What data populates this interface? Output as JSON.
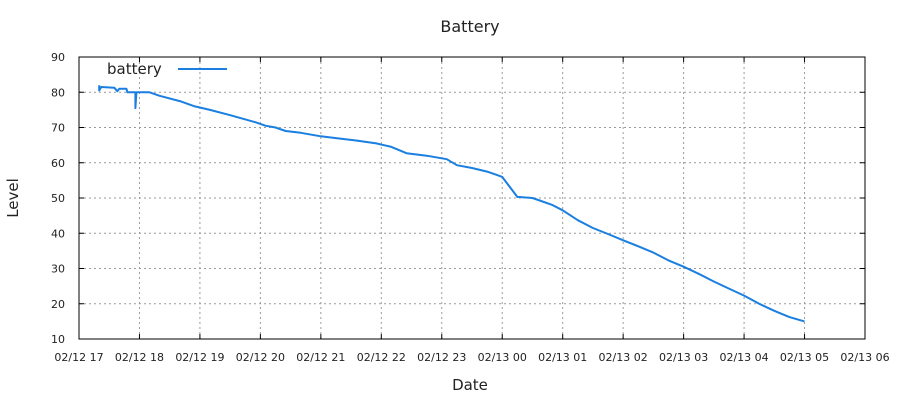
{
  "colors": {
    "series": "#1a7fe0",
    "grid": "#9a9a9a",
    "axis": "#000000"
  },
  "chart_data": {
    "type": "line",
    "title": "Battery",
    "xlabel": "Date",
    "ylabel": "Level",
    "ylim": [
      10,
      90
    ],
    "xlim": [
      "02/12 17",
      "02/13 06"
    ],
    "grid": true,
    "legend_position": "top-left",
    "y_ticks": [
      "10",
      "20",
      "30",
      "40",
      "50",
      "60",
      "70",
      "80",
      "90"
    ],
    "x_ticks": [
      "02/12 17",
      "02/12 18",
      "02/12 19",
      "02/12 20",
      "02/12 21",
      "02/12 22",
      "02/12 23",
      "02/13 00",
      "02/13 01",
      "02/13 02",
      "02/13 03",
      "02/13 04",
      "02/13 05",
      "02/13 06"
    ],
    "series": [
      {
        "name": "battery",
        "color": "#1a7fe0",
        "points": [
          [
            "02/12 17:20",
            82
          ],
          [
            "02/12 17:20",
            80.5
          ],
          [
            "02/12 17:22",
            81.5
          ],
          [
            "02/12 17:35",
            81.3
          ],
          [
            "02/12 17:38",
            80.3
          ],
          [
            "02/12 17:40",
            81
          ],
          [
            "02/12 17:47",
            81
          ],
          [
            "02/12 17:48",
            80
          ],
          [
            "02/12 17:56",
            80
          ],
          [
            "02/12 17:56",
            75.5
          ],
          [
            "02/12 17:57",
            80
          ],
          [
            "02/12 18:10",
            80
          ],
          [
            "02/12 18:20",
            79
          ],
          [
            "02/12 18:40",
            77.5
          ],
          [
            "02/12 18:55",
            76
          ],
          [
            "02/12 19:10",
            75
          ],
          [
            "02/12 19:30",
            73.5
          ],
          [
            "02/12 19:55",
            71.5
          ],
          [
            "02/12 20:05",
            70.5
          ],
          [
            "02/12 20:15",
            70
          ],
          [
            "02/12 20:25",
            69
          ],
          [
            "02/12 20:40",
            68.5
          ],
          [
            "02/12 21:00",
            67.5
          ],
          [
            "02/12 21:15",
            67
          ],
          [
            "02/12 21:35",
            66.3
          ],
          [
            "02/12 21:55",
            65.5
          ],
          [
            "02/12 22:10",
            64.5
          ],
          [
            "02/12 22:25",
            62.7
          ],
          [
            "02/12 22:45",
            62
          ],
          [
            "02/12 23:05",
            61
          ],
          [
            "02/12 23:15",
            59.3
          ],
          [
            "02/12 23:30",
            58.5
          ],
          [
            "02/12 23:45",
            57.5
          ],
          [
            "02/12 23:55",
            56.5
          ],
          [
            "02/13 00:00",
            56
          ],
          [
            "02/13 00:15",
            50.3
          ],
          [
            "02/13 00:30",
            50
          ],
          [
            "02/13 00:40",
            49
          ],
          [
            "02/13 00:50",
            48
          ],
          [
            "02/13 01:00",
            46.5
          ],
          [
            "02/13 01:15",
            43.7
          ],
          [
            "02/13 01:30",
            41.5
          ],
          [
            "02/13 01:45",
            39.8
          ],
          [
            "02/13 02:00",
            38
          ],
          [
            "02/13 02:15",
            36.3
          ],
          [
            "02/13 02:30",
            34.5
          ],
          [
            "02/13 02:45",
            32.3
          ],
          [
            "02/13 03:00",
            30.5
          ],
          [
            "02/13 03:15",
            28.5
          ],
          [
            "02/13 03:30",
            26.3
          ],
          [
            "02/13 03:45",
            24.3
          ],
          [
            "02/13 04:00",
            22.3
          ],
          [
            "02/13 04:15",
            20
          ],
          [
            "02/13 04:30",
            18
          ],
          [
            "02/13 04:45",
            16.2
          ],
          [
            "02/13 05:00",
            15
          ]
        ]
      }
    ]
  }
}
